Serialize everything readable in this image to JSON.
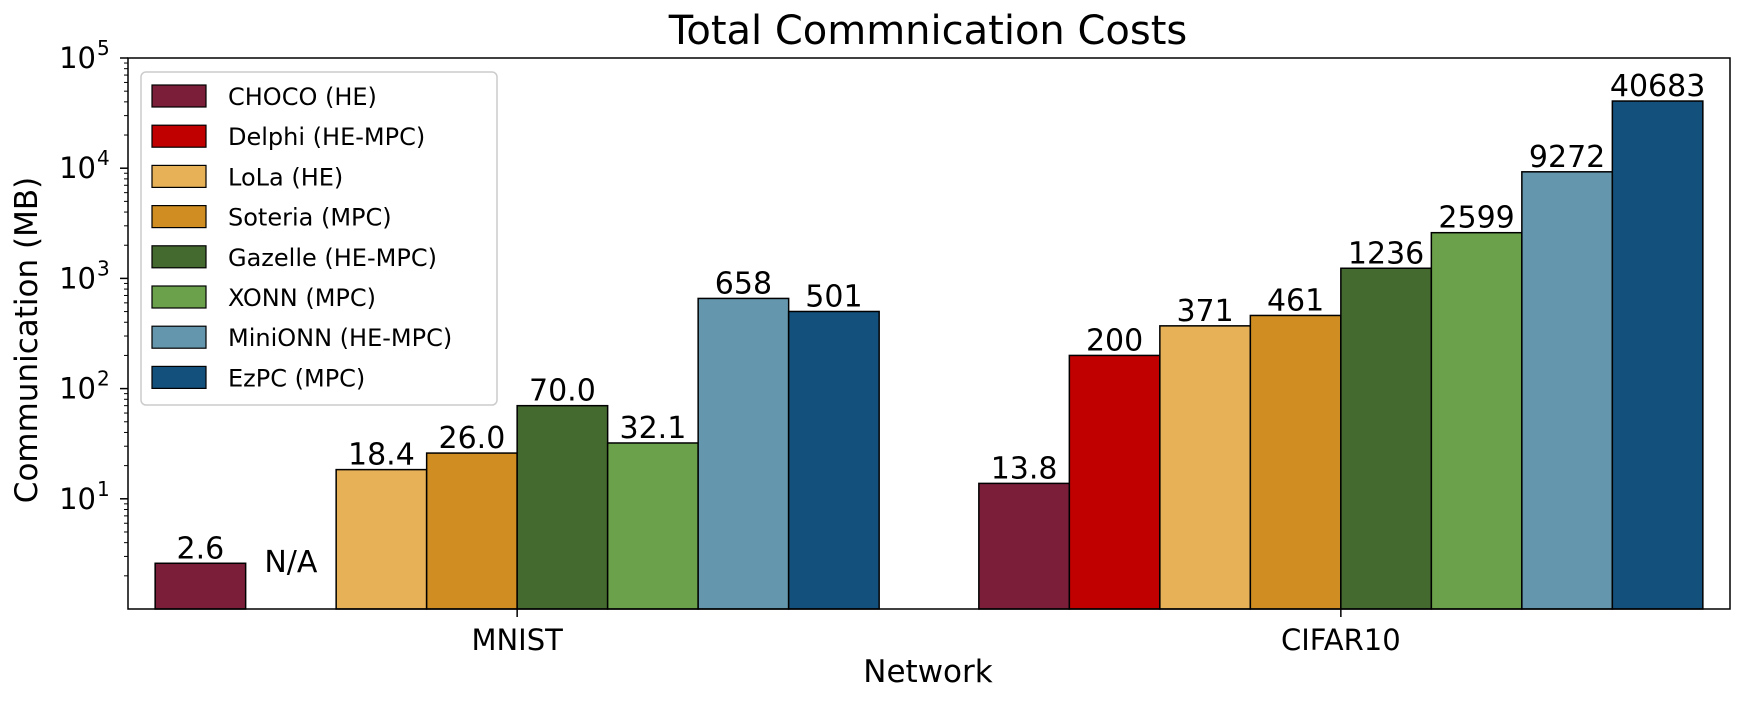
{
  "chart_data": {
    "type": "bar",
    "title": "Total Commnication Costs",
    "xlabel": "Network",
    "ylabel": "Communication (MB)",
    "yscale": "log",
    "ylim": [
      1,
      100000
    ],
    "y_ticks": [
      {
        "value": 10,
        "base": "10",
        "exp": "1"
      },
      {
        "value": 100,
        "base": "10",
        "exp": "2"
      },
      {
        "value": 1000,
        "base": "10",
        "exp": "3"
      },
      {
        "value": 10000,
        "base": "10",
        "exp": "4"
      },
      {
        "value": 100000,
        "base": "10",
        "exp": "5"
      }
    ],
    "categories": [
      "MNIST",
      "CIFAR10"
    ],
    "legend_position": "top-left",
    "grid": false,
    "series": [
      {
        "name": "CHOCO (HE)",
        "color": "#7a1e3a",
        "values": [
          2.6,
          13.8
        ],
        "labels": [
          "2.6",
          "13.8"
        ]
      },
      {
        "name": "Delphi (HE-MPC)",
        "color": "#c00000",
        "values": [
          null,
          200
        ],
        "labels": [
          "N/A",
          "200"
        ]
      },
      {
        "name": "LoLa (HE)",
        "color": "#e6b157",
        "values": [
          18.4,
          371
        ],
        "labels": [
          "18.4",
          "371"
        ]
      },
      {
        "name": "Soteria (MPC)",
        "color": "#d08e22",
        "values": [
          26.0,
          461
        ],
        "labels": [
          "26.0",
          "461"
        ]
      },
      {
        "name": "Gazelle (HE-MPC)",
        "color": "#456a30",
        "values": [
          70.0,
          1236
        ],
        "labels": [
          "70.0",
          "1236"
        ]
      },
      {
        "name": "XONN (MPC)",
        "color": "#6aa14a",
        "values": [
          32.1,
          2599
        ],
        "labels": [
          "32.1",
          "2599"
        ]
      },
      {
        "name": "MiniONN (HE-MPC)",
        "color": "#6497ae",
        "values": [
          658,
          9272
        ],
        "labels": [
          "658",
          "9272"
        ]
      },
      {
        "name": "EzPC (MPC)",
        "color": "#13507c",
        "values": [
          501,
          40683
        ],
        "labels": [
          "501",
          "40683"
        ]
      }
    ]
  }
}
